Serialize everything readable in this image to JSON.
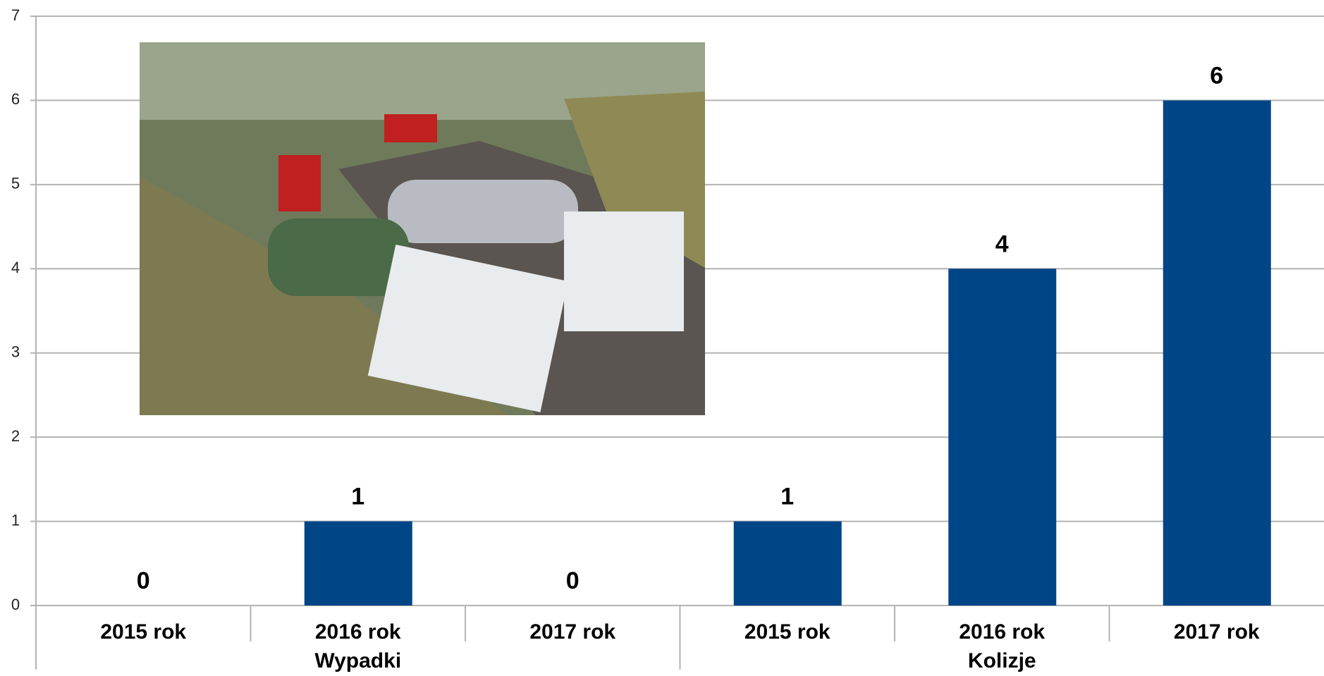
{
  "chart_data": {
    "type": "bar",
    "categories": [
      "2015 rok",
      "2016 rok",
      "2017 rok",
      "2015 rok",
      "2016 rok",
      "2017 rok"
    ],
    "groups": [
      "Wypadki",
      "Kolizje"
    ],
    "values": [
      0,
      1,
      0,
      1,
      4,
      6
    ],
    "color": "#004586",
    "ylim": [
      0,
      7
    ],
    "yticks": [
      0,
      1,
      2,
      3,
      4,
      5,
      6,
      7
    ],
    "grid": true
  }
}
